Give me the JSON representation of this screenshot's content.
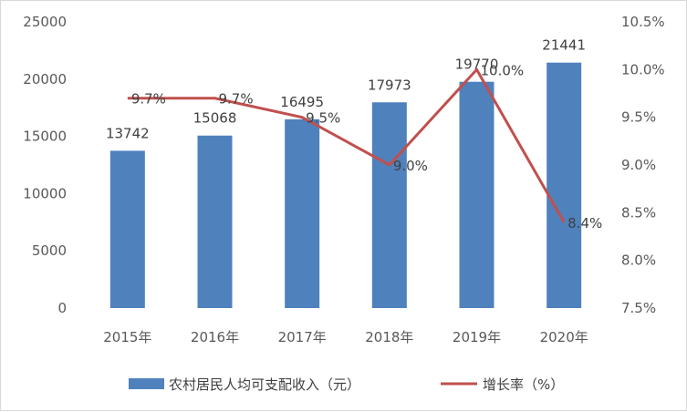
{
  "chart_data": {
    "type": "bar",
    "categories": [
      "2015年",
      "2016年",
      "2017年",
      "2018年",
      "2019年",
      "2020年"
    ],
    "series": [
      {
        "name": "农村居民人均可支配收入（元）",
        "type": "bar",
        "axis": "left",
        "values": [
          13742,
          15068,
          16495,
          17973,
          19770,
          21441
        ],
        "labels": [
          "13742",
          "15068",
          "16495",
          "17973",
          "19770",
          "21441"
        ],
        "color": "#4f81bd"
      },
      {
        "name": "增长率（%）",
        "type": "line",
        "axis": "right",
        "values": [
          9.7,
          9.7,
          9.5,
          9.0,
          10.0,
          8.4
        ],
        "labels": [
          "9.7%",
          "9.7%",
          "9.5%",
          "9.0%",
          "10.0%",
          "8.4%"
        ],
        "color": "#c0504d"
      }
    ],
    "left_axis": {
      "ylim": [
        0,
        25000
      ],
      "ticks": [
        "0",
        "5000",
        "10000",
        "15000",
        "20000",
        "25000"
      ]
    },
    "right_axis": {
      "ylim": [
        7.5,
        10.5
      ],
      "ticks": [
        "7.5%",
        "8.0%",
        "8.5%",
        "9.0%",
        "9.5%",
        "10.0%",
        "10.5%"
      ]
    },
    "grid": false,
    "legend_position": "bottom"
  }
}
